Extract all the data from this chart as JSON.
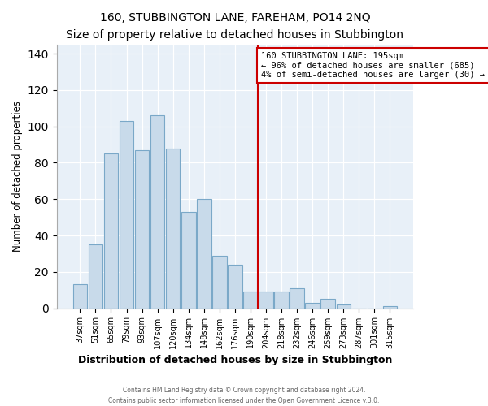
{
  "title": "160, STUBBINGTON LANE, FAREHAM, PO14 2NQ",
  "subtitle": "Size of property relative to detached houses in Stubbington",
  "xlabel": "Distribution of detached houses by size in Stubbington",
  "ylabel": "Number of detached properties",
  "bar_labels": [
    "37sqm",
    "51sqm",
    "65sqm",
    "79sqm",
    "93sqm",
    "107sqm",
    "120sqm",
    "134sqm",
    "148sqm",
    "162sqm",
    "176sqm",
    "190sqm",
    "204sqm",
    "218sqm",
    "232sqm",
    "246sqm",
    "259sqm",
    "273sqm",
    "287sqm",
    "301sqm",
    "315sqm"
  ],
  "bar_heights": [
    13,
    35,
    85,
    103,
    87,
    106,
    88,
    53,
    60,
    29,
    24,
    9,
    9,
    9,
    11,
    3,
    5,
    2,
    0,
    0,
    1
  ],
  "bar_color": "#c8daea",
  "bar_edge_color": "#7aa8c8",
  "vline_x_idx": 11.5,
  "vline_color": "#cc0000",
  "annotation_title": "160 STUBBINGTON LANE: 195sqm",
  "annotation_line1": "← 96% of detached houses are smaller (685)",
  "annotation_line2": "4% of semi-detached houses are larger (30) →",
  "annotation_box_color": "#ffffff",
  "annotation_box_edge": "#cc0000",
  "ylim": [
    0,
    145
  ],
  "yticks": [
    0,
    20,
    40,
    60,
    80,
    100,
    120,
    140
  ],
  "bg_color": "#e8f0f8",
  "grid_color": "#ffffff",
  "footer1": "Contains HM Land Registry data © Crown copyright and database right 2024.",
  "footer2": "Contains public sector information licensed under the Open Government Licence v.3.0."
}
